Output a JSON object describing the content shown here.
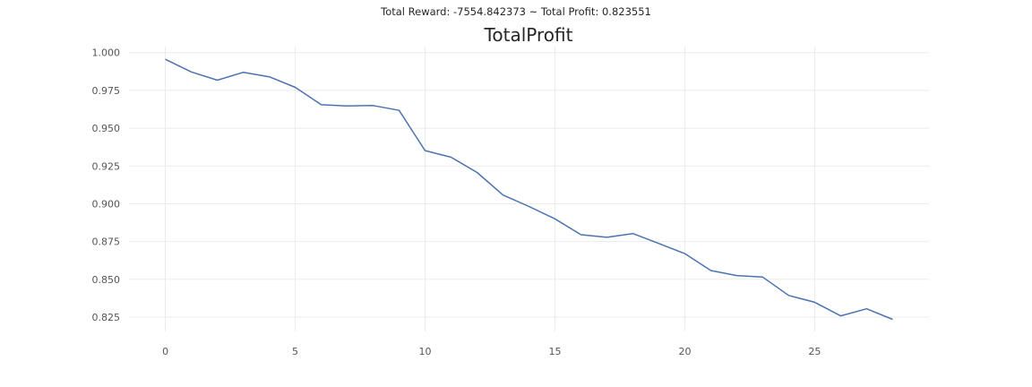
{
  "suptitle": "Total Reward: -7554.842373 ~ Total Profit: 0.823551",
  "chart_data": {
    "type": "line",
    "title": "TotalProfit",
    "xlabel": "",
    "ylabel": "",
    "xlim": [
      -1.4,
      29.4
    ],
    "ylim": [
      0.8155,
      1.004
    ],
    "xticks": [
      0,
      5,
      10,
      15,
      20,
      25
    ],
    "yticks": [
      1.0,
      0.975,
      0.95,
      0.925,
      0.9,
      0.875,
      0.85,
      0.825
    ],
    "ytick_labels": [
      "1.000",
      "0.975",
      "0.950",
      "0.925",
      "0.900",
      "0.875",
      "0.850",
      "0.825"
    ],
    "grid": true,
    "line_color": "#4c72b0",
    "series": [
      {
        "x": [
          0,
          1,
          2,
          3,
          4,
          5,
          6,
          7,
          8,
          9,
          10,
          11,
          12,
          13,
          14,
          15,
          16,
          17,
          18,
          19,
          20,
          21,
          22,
          23,
          24,
          25,
          26,
          27,
          28
        ],
        "values": [
          0.9956,
          0.9872,
          0.9818,
          0.987,
          0.984,
          0.977,
          0.9655,
          0.9647,
          0.965,
          0.9618,
          0.9352,
          0.9308,
          0.9207,
          0.9058,
          0.8982,
          0.89,
          0.8795,
          0.8778,
          0.8803,
          0.8737,
          0.867,
          0.8558,
          0.8525,
          0.8515,
          0.8393,
          0.8348,
          0.8258,
          0.8305,
          0.8235
        ]
      }
    ]
  }
}
